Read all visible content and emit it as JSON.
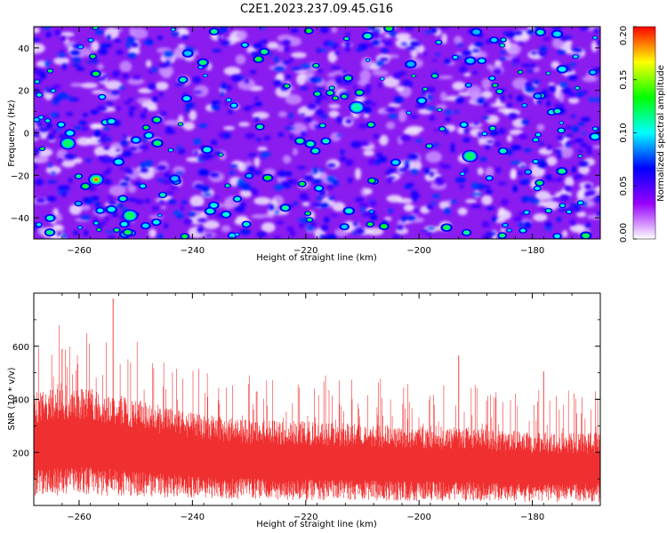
{
  "title": "C2E1.2023.237.09.45.G16",
  "chart_data": [
    {
      "type": "heatmap",
      "xlabel": "Height of straight line (km)",
      "ylabel": "Frequency (Hz)",
      "xlim": [
        -268,
        -168
      ],
      "ylim": [
        -50,
        50
      ],
      "xticks": [
        -260,
        -240,
        -220,
        -200,
        -180
      ],
      "yticks": [
        -40,
        -20,
        0,
        20,
        40
      ],
      "colorbar": {
        "label": "Normalized spectral amplitude",
        "range": [
          0.0,
          0.2
        ],
        "ticks": [
          "0.00",
          "0.05",
          "0.10",
          "0.15",
          "0.20"
        ],
        "colors": [
          "#ffffff",
          "#9900ff",
          "#0000ff",
          "#00ffff",
          "#00ff00",
          "#ffff00",
          "#ff0000"
        ]
      },
      "notable_peaks": [
        {
          "x": -257,
          "y": -22,
          "value": 0.19
        },
        {
          "x": -251,
          "y": -39,
          "value": 0.13
        },
        {
          "x": -262,
          "y": -5,
          "value": 0.12
        },
        {
          "x": -211,
          "y": 12,
          "value": 0.11
        },
        {
          "x": -191,
          "y": -11,
          "value": 0.12
        }
      ]
    },
    {
      "type": "line",
      "xlabel": "Height of straight line (km)",
      "ylabel": "SNR (10 * v/v)",
      "xlim": [
        -268,
        -168
      ],
      "ylim": [
        0,
        800
      ],
      "xticks": [
        -260,
        -240,
        -220,
        -200,
        -180
      ],
      "yticks": [
        200,
        400,
        600
      ],
      "series_color": "#f03030",
      "trend": [
        {
          "x": -268,
          "mean": 240,
          "spread": 170
        },
        {
          "x": -260,
          "mean": 255,
          "spread": 180
        },
        {
          "x": -250,
          "mean": 225,
          "spread": 160
        },
        {
          "x": -240,
          "mean": 195,
          "spread": 140
        },
        {
          "x": -230,
          "mean": 180,
          "spread": 130
        },
        {
          "x": -220,
          "mean": 175,
          "spread": 130
        },
        {
          "x": -210,
          "mean": 170,
          "spread": 125
        },
        {
          "x": -200,
          "mean": 165,
          "spread": 125
        },
        {
          "x": -190,
          "mean": 160,
          "spread": 120
        },
        {
          "x": -180,
          "mean": 150,
          "spread": 115
        },
        {
          "x": -168,
          "mean": 150,
          "spread": 115
        }
      ],
      "notable_spikes": [
        {
          "x": -263,
          "y": 590
        },
        {
          "x": -254,
          "y": 780
        },
        {
          "x": -193,
          "y": 565
        },
        {
          "x": -178,
          "y": 505
        }
      ]
    }
  ]
}
